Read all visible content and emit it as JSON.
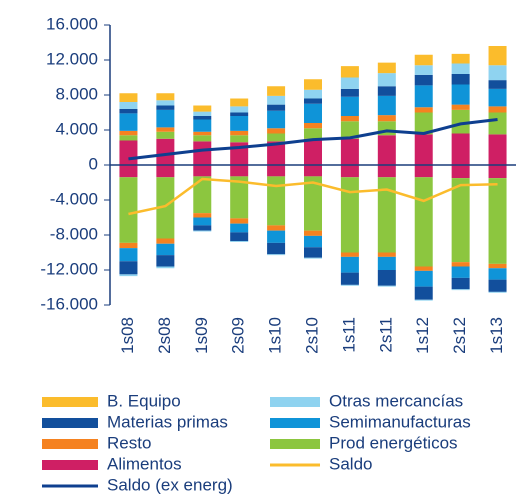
{
  "chart_data": {
    "type": "bar",
    "categories": [
      "1s08",
      "2s08",
      "1s09",
      "2s09",
      "1s10",
      "2s10",
      "1s11",
      "2s11",
      "1s12",
      "2s12",
      "1s13"
    ],
    "ylim": [
      -16000,
      16000
    ],
    "yticks": [
      {
        "value": -16000,
        "label": "-16.000"
      },
      {
        "value": -12000,
        "label": "-12.000"
      },
      {
        "value": -8000,
        "label": "-8.000"
      },
      {
        "value": -4000,
        "label": "-4.000"
      },
      0,
      {
        "value": 4000,
        "label": "4.000"
      },
      {
        "value": 8000,
        "label": "8.000"
      },
      {
        "value": 12000,
        "label": "12.000"
      },
      {
        "value": 16000,
        "label": "16.000"
      }
    ],
    "series": [
      {
        "name": "B. Equipo",
        "type": "bar",
        "color": "#fbbc2c",
        "values": [
          1000,
          800,
          700,
          900,
          1100,
          1200,
          1300,
          1200,
          1200,
          1100,
          2200
        ],
        "negative_values": [
          0,
          0,
          0,
          0,
          0,
          0,
          0,
          0,
          0,
          0,
          0
        ]
      },
      {
        "name": "Otras mercancías",
        "type": "bar",
        "color": "#8fd3f0",
        "values": [
          800,
          600,
          500,
          700,
          1000,
          1000,
          1300,
          1500,
          1100,
          1200,
          1700
        ],
        "negative_values": [
          -200,
          -200,
          -100,
          -100,
          -100,
          -100,
          -100,
          -100,
          -100,
          -100,
          -100
        ]
      },
      {
        "name": "Materias primas",
        "type": "bar",
        "color": "#124f9c",
        "values": [
          500,
          500,
          400,
          400,
          700,
          600,
          900,
          1100,
          1200,
          1200,
          1000
        ],
        "negative_values": [
          -1500,
          -1300,
          -600,
          -1000,
          -1300,
          -1200,
          -1400,
          -1800,
          -1500,
          -1300,
          -1400
        ]
      },
      {
        "name": "Semimanufacturas",
        "type": "bar",
        "color": "#0f94d8",
        "values": [
          2000,
          2000,
          1400,
          1700,
          2000,
          2200,
          2200,
          2200,
          2500,
          2300,
          2000
        ],
        "negative_values": [
          -1500,
          -1300,
          -900,
          -1000,
          -1400,
          -1300,
          -1800,
          -1500,
          -1800,
          -1300,
          -1300
        ]
      },
      {
        "name": "Resto",
        "type": "bar",
        "color": "#f58220",
        "values": [
          500,
          500,
          400,
          500,
          600,
          600,
          600,
          700,
          600,
          600,
          700
        ],
        "negative_values": [
          -600,
          -600,
          -500,
          -600,
          -600,
          -600,
          -500,
          -500,
          -500,
          -500,
          -500
        ]
      },
      {
        "name": "Prod energéticos",
        "type": "bar",
        "color": "#8cc63f",
        "values": [
          600,
          800,
          700,
          800,
          900,
          1200,
          2000,
          1600,
          2500,
          2700,
          2500
        ],
        "negative_values": [
          -7500,
          -7000,
          -4200,
          -4800,
          -5600,
          -6200,
          -8600,
          -8600,
          -10200,
          -9600,
          -9800
        ]
      },
      {
        "name": "Alimentos",
        "type": "bar",
        "color": "#cf1f64",
        "values": [
          2800,
          3000,
          2700,
          2600,
          2700,
          3000,
          3000,
          3400,
          3500,
          3600,
          3500
        ],
        "negative_values": [
          -1400,
          -1400,
          -1300,
          -1300,
          -1300,
          -1300,
          -1400,
          -1400,
          -1400,
          -1500,
          -1500
        ]
      },
      {
        "name": "Saldo",
        "type": "line",
        "color": "#fbbc2c",
        "values": [
          -5600,
          -4700,
          -1600,
          -1900,
          -2400,
          -2000,
          -3100,
          -2800,
          -4100,
          -2300,
          -2200
        ]
      },
      {
        "name": "Saldo (ex energ)",
        "type": "line",
        "color": "#0e3f8f",
        "values": [
          700,
          1200,
          1700,
          2000,
          2400,
          2900,
          3100,
          3900,
          3600,
          4700,
          5200
        ]
      }
    ]
  }
}
